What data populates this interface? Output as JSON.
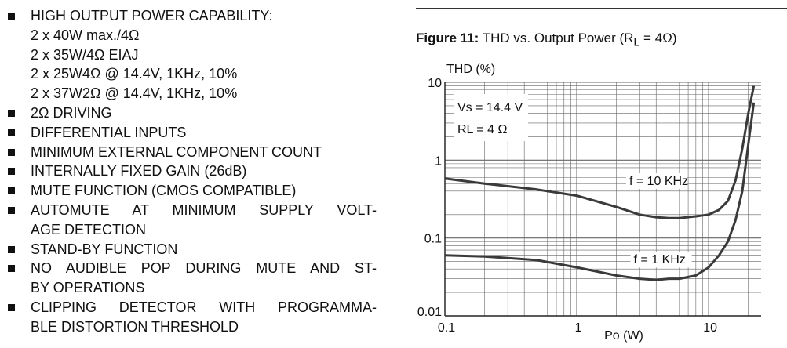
{
  "features": [
    {
      "lines": [
        "HIGH OUTPUT POWER CAPABILITY:",
        "2 x 40W max./4Ω",
        "2 x 35W/4Ω EIAJ",
        "2 x 25W4Ω @ 14.4V, 1KHz, 10%",
        "2 x 37W2Ω @ 14.4V, 1KHz, 10%"
      ]
    },
    {
      "lines": [
        "2Ω DRIVING"
      ]
    },
    {
      "lines": [
        "DIFFERENTIAL INPUTS"
      ]
    },
    {
      "lines": [
        "MINIMUM EXTERNAL COMPONENT COUNT"
      ]
    },
    {
      "lines": [
        "INTERNALLY FIXED GAIN (26dB)"
      ]
    },
    {
      "lines": [
        "MUTE FUNCTION (CMOS COMPATIBLE)"
      ]
    },
    {
      "lines": [
        "AUTOMUTE AT MINIMUM SUPPLY VOLT-",
        "AGE DETECTION"
      ]
    },
    {
      "lines": [
        "STAND-BY FUNCTION"
      ]
    },
    {
      "lines": [
        "NO AUDIBLE POP DURING MUTE AND ST-",
        "BY OPERATIONS"
      ]
    },
    {
      "lines": [
        "CLIPPING DETECTOR WITH PROGRAMMA-",
        "BLE DISTORTION THRESHOLD"
      ]
    }
  ],
  "figure": {
    "label": "Figure 11:",
    "caption_pre": "THD vs. Output Power (R",
    "caption_sub": "L",
    "caption_post": " = 4Ω)"
  },
  "chart_data": {
    "type": "line",
    "xscale": "log",
    "yscale": "log",
    "xlim": [
      0.1,
      25
    ],
    "ylim": [
      0.01,
      10
    ],
    "xticks": [
      0.1,
      1,
      10
    ],
    "xtick_labels": [
      "0.1",
      "1",
      "10"
    ],
    "yticks": [
      0.01,
      0.1,
      1,
      10
    ],
    "ytick_labels": [
      "0.01",
      "0.1",
      "1",
      "10"
    ],
    "xlabel": "Po (W)",
    "ylabel": "THD (%)",
    "grid": true,
    "annotations": [
      "Vs = 14.4 V",
      "RL = 4 Ω"
    ],
    "series": [
      {
        "name": "f = 10 KHz",
        "x": [
          0.1,
          0.2,
          0.5,
          1,
          2,
          3,
          4,
          5,
          6,
          8,
          10,
          12,
          14,
          16,
          18,
          20,
          22
        ],
        "y": [
          0.58,
          0.5,
          0.42,
          0.35,
          0.25,
          0.2,
          0.185,
          0.18,
          0.18,
          0.19,
          0.2,
          0.23,
          0.3,
          0.55,
          1.4,
          4,
          9
        ]
      },
      {
        "name": "f = 1 KHz",
        "x": [
          0.1,
          0.2,
          0.5,
          1,
          2,
          3,
          4,
          5,
          6,
          8,
          10,
          12,
          14,
          16,
          18,
          20,
          22
        ],
        "y": [
          0.06,
          0.058,
          0.052,
          0.042,
          0.033,
          0.03,
          0.029,
          0.03,
          0.03,
          0.033,
          0.042,
          0.06,
          0.09,
          0.17,
          0.4,
          1.6,
          5.5
        ]
      }
    ]
  }
}
